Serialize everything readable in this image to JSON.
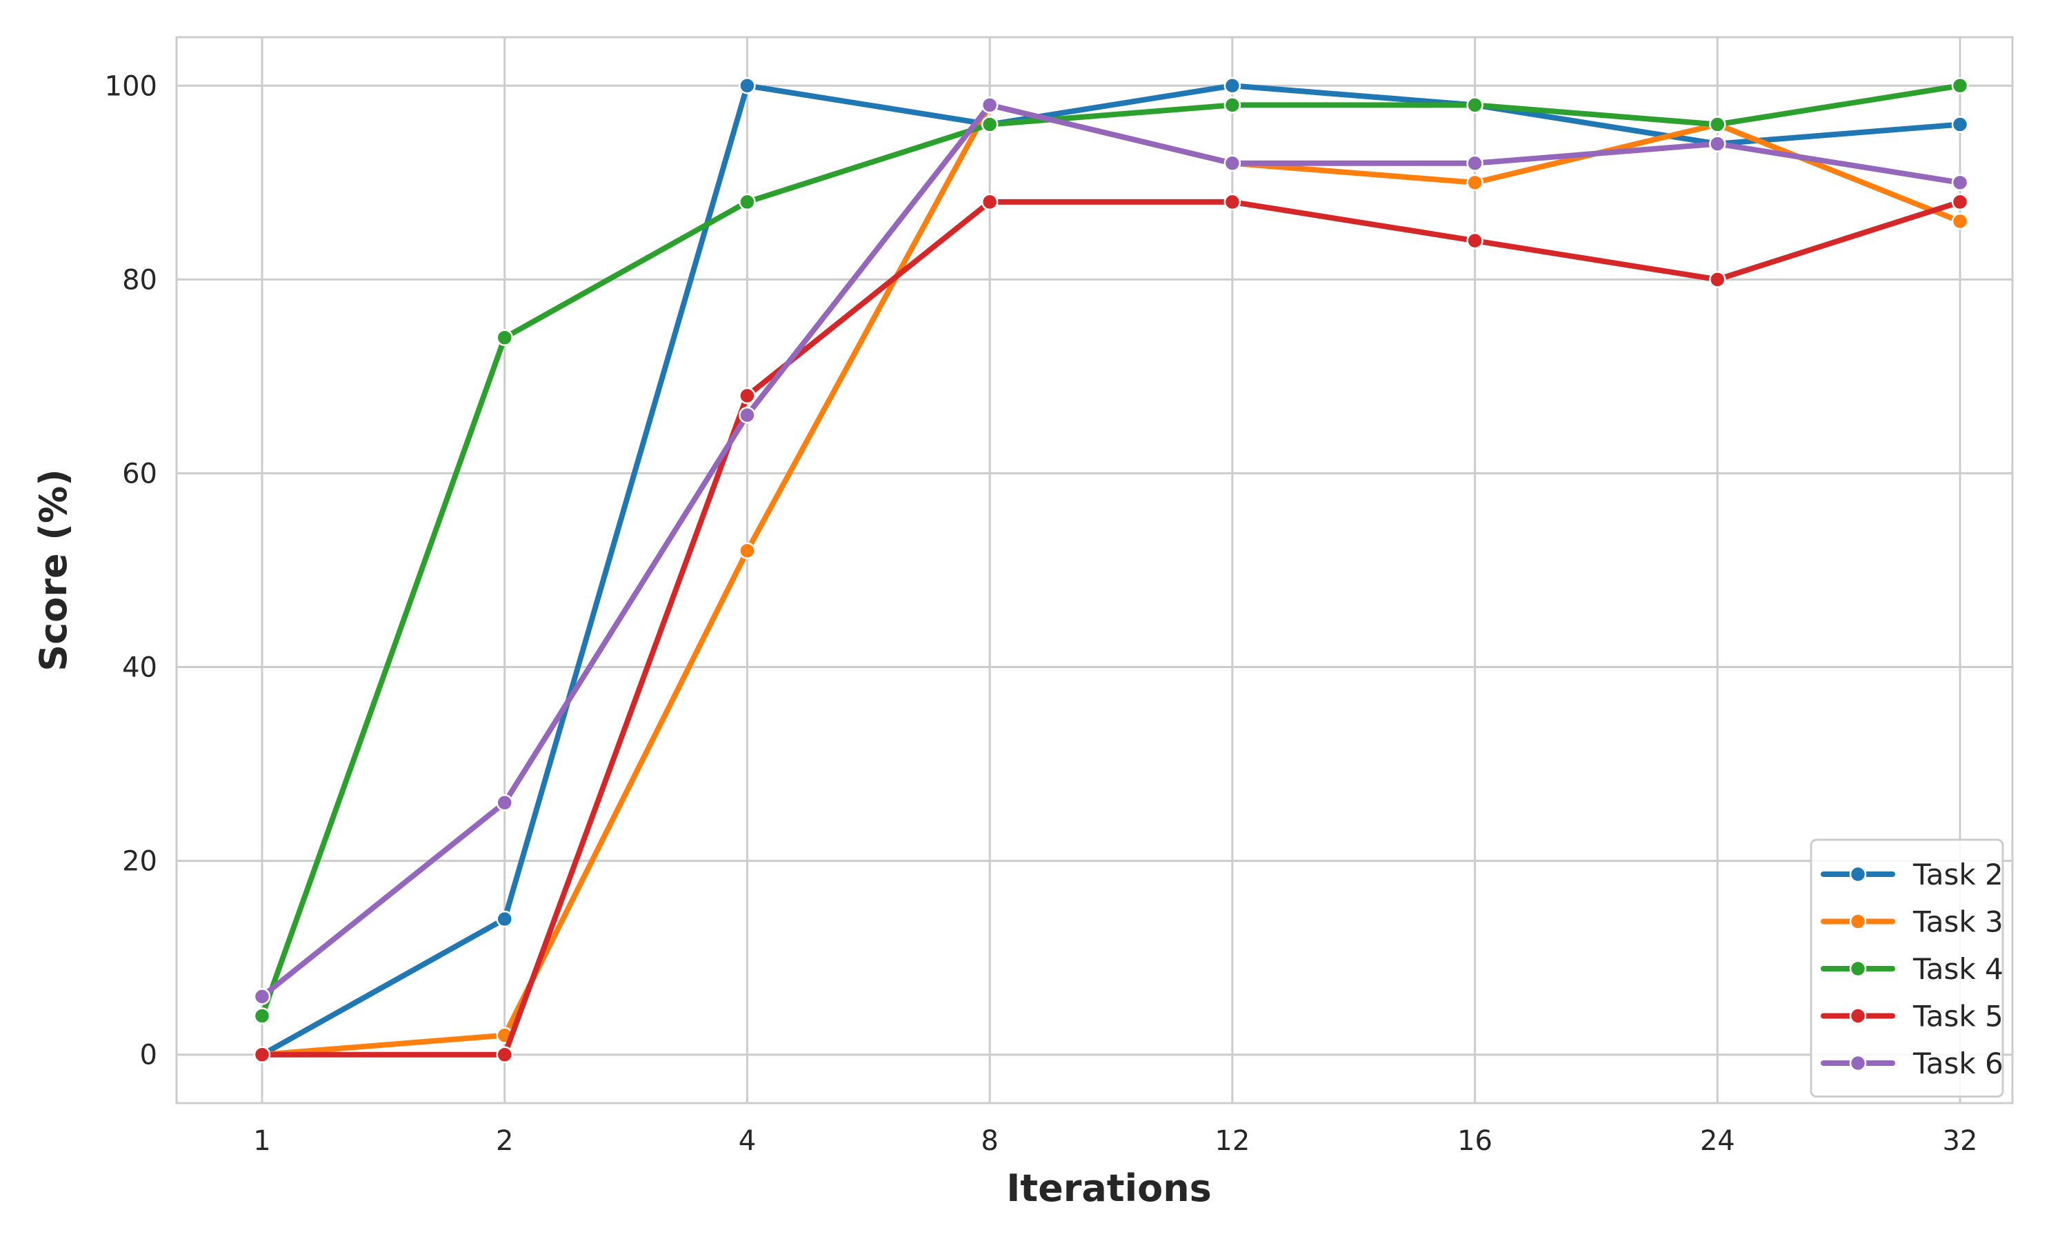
{
  "chart_data": {
    "type": "line",
    "categories": [
      "1",
      "2",
      "4",
      "8",
      "12",
      "16",
      "24",
      "32"
    ],
    "xlabel": "Iterations",
    "ylabel": "Score (%)",
    "ylim": [
      -5,
      105
    ],
    "yticks": [
      0,
      20,
      40,
      60,
      80,
      100
    ],
    "grid": true,
    "legend_position": "bottom-right",
    "series": [
      {
        "name": "Task 2",
        "color": "#1f77b4",
        "values": [
          0,
          14,
          100,
          96,
          100,
          98,
          94,
          96
        ]
      },
      {
        "name": "Task 3",
        "color": "#ff7f0e",
        "values": [
          0,
          2,
          52,
          98,
          92,
          90,
          96,
          86
        ]
      },
      {
        "name": "Task 4",
        "color": "#2ca02c",
        "values": [
          4,
          74,
          88,
          96,
          98,
          98,
          96,
          100
        ]
      },
      {
        "name": "Task 5",
        "color": "#d62728",
        "values": [
          0,
          0,
          68,
          88,
          88,
          84,
          80,
          88
        ]
      },
      {
        "name": "Task 6",
        "color": "#9467bd",
        "values": [
          6,
          26,
          66,
          98,
          92,
          92,
          94,
          90
        ]
      }
    ]
  }
}
